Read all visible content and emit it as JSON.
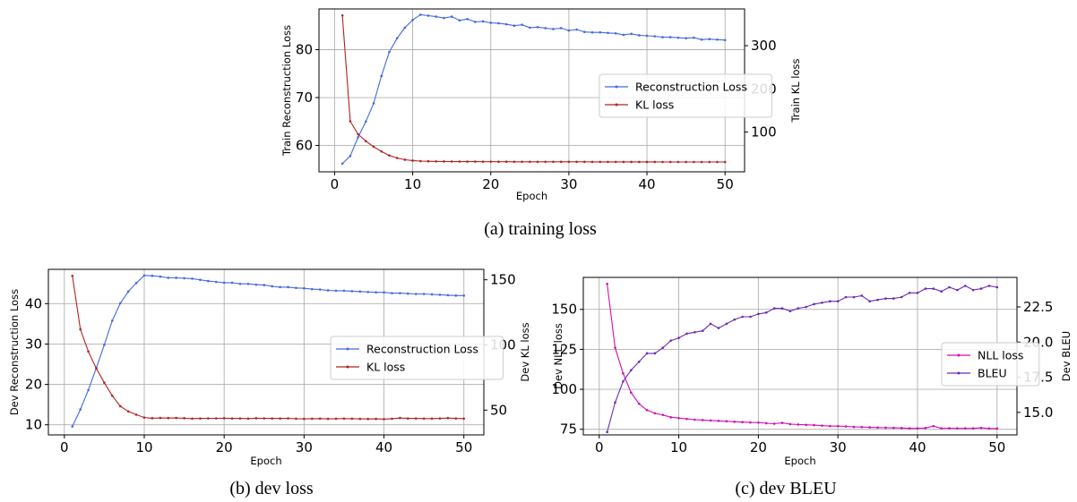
{
  "colors": {
    "recon": "#4169e1",
    "kl": "#b22222",
    "nll": "#d40cae",
    "bleu": "#6a2bb0",
    "grid": "#b0b0b0"
  },
  "chart_data": [
    {
      "id": "train",
      "type": "line",
      "caption": "(a) training loss",
      "xlabel": "Epoch",
      "ylabel_left": "Train Reconstruction Loss",
      "ylabel_right": "Train KL loss",
      "xlim": [
        -2.0,
        52.5
      ],
      "ylim_left": [
        54.5,
        88.5
      ],
      "ylim_right": [
        8,
        385
      ],
      "x_ticks": [
        0,
        10,
        20,
        30,
        40,
        50
      ],
      "y_ticks_left": [
        60,
        70,
        80
      ],
      "y_ticks_right": [
        100,
        200,
        300
      ],
      "grid": true,
      "legend_position": "right",
      "x": [
        1,
        2,
        3,
        4,
        5,
        6,
        7,
        8,
        9,
        10,
        11,
        12,
        13,
        14,
        15,
        16,
        17,
        18,
        19,
        20,
        21,
        22,
        23,
        24,
        25,
        26,
        27,
        28,
        29,
        30,
        31,
        32,
        33,
        34,
        35,
        36,
        37,
        38,
        39,
        40,
        41,
        42,
        43,
        44,
        45,
        46,
        47,
        48,
        49,
        50
      ],
      "series": [
        {
          "name": "Reconstruction Loss",
          "axis": "left",
          "color_key": "recon",
          "values": [
            56.2,
            57.8,
            61.7,
            65.0,
            68.8,
            74.5,
            79.5,
            82.4,
            84.6,
            86.2,
            87.3,
            87.1,
            86.9,
            86.6,
            86.9,
            86.1,
            86.4,
            85.8,
            85.9,
            85.6,
            85.5,
            85.3,
            85.0,
            85.2,
            84.6,
            84.7,
            84.5,
            84.3,
            84.5,
            84.0,
            84.2,
            83.7,
            83.6,
            83.6,
            83.5,
            83.4,
            83.1,
            83.3,
            83.0,
            82.9,
            82.8,
            82.6,
            82.6,
            82.5,
            82.4,
            82.5,
            82.1,
            82.2,
            82.1,
            82.0
          ]
        },
        {
          "name": "KL loss",
          "axis": "right",
          "color_key": "kl",
          "values": [
            370,
            125,
            95,
            79,
            66,
            55,
            46,
            40,
            36,
            34,
            32.8,
            32.4,
            32.1,
            31.9,
            31.8,
            31.7,
            31.6,
            31.6,
            31.5,
            31.5,
            31.4,
            31.4,
            31.3,
            31.3,
            31.3,
            31.2,
            31.2,
            31.2,
            31.1,
            31.1,
            31.1,
            31.1,
            31.0,
            31.0,
            31.0,
            31.0,
            30.9,
            30.9,
            30.9,
            30.9,
            30.9,
            30.8,
            30.8,
            30.8,
            30.8,
            30.8,
            30.7,
            30.7,
            30.7,
            30.7
          ]
        }
      ]
    },
    {
      "id": "dev",
      "type": "line",
      "caption": "(b) dev loss",
      "xlabel": "Epoch",
      "ylabel_left": "Dev Reconstruction Loss",
      "ylabel_right": "Dev KL loss",
      "xlim": [
        -2.0,
        52.5
      ],
      "ylim_left": [
        7.5,
        48.5
      ],
      "ylim_right": [
        31,
        158
      ],
      "x_ticks": [
        0,
        10,
        20,
        30,
        40,
        50
      ],
      "y_ticks_left": [
        10,
        20,
        30,
        40
      ],
      "y_ticks_right": [
        50,
        100,
        150
      ],
      "grid": true,
      "legend_position": "right",
      "x": [
        1,
        2,
        3,
        4,
        5,
        6,
        7,
        8,
        9,
        10,
        11,
        12,
        13,
        14,
        15,
        16,
        17,
        18,
        19,
        20,
        21,
        22,
        23,
        24,
        25,
        26,
        27,
        28,
        29,
        30,
        31,
        32,
        33,
        34,
        35,
        36,
        37,
        38,
        39,
        40,
        41,
        42,
        43,
        44,
        45,
        46,
        47,
        48,
        49,
        50
      ],
      "series": [
        {
          "name": "Reconstruction Loss",
          "axis": "left",
          "color_key": "recon",
          "values": [
            9.6,
            13.8,
            18.6,
            24.1,
            29.8,
            35.8,
            40.1,
            43.0,
            45.1,
            47.0,
            46.9,
            46.7,
            46.4,
            46.4,
            46.3,
            46.2,
            45.9,
            45.6,
            45.4,
            45.2,
            45.2,
            44.9,
            44.9,
            44.7,
            44.6,
            44.3,
            44.1,
            44.1,
            43.9,
            43.8,
            43.6,
            43.5,
            43.3,
            43.2,
            43.2,
            43.1,
            43.0,
            42.9,
            42.8,
            42.8,
            42.6,
            42.6,
            42.5,
            42.4,
            42.4,
            42.3,
            42.2,
            42.1,
            42.0,
            42.0
          ]
        },
        {
          "name": "KL loss",
          "axis": "right",
          "color_key": "kl",
          "values": [
            153,
            112,
            95,
            82,
            71,
            61,
            53,
            49,
            46.5,
            44.3,
            43.8,
            44.0,
            43.9,
            44.0,
            43.8,
            43.5,
            43.6,
            43.7,
            43.7,
            43.8,
            43.6,
            43.6,
            43.5,
            43.8,
            43.7,
            43.6,
            43.6,
            43.7,
            43.4,
            43.3,
            43.4,
            43.5,
            43.3,
            43.4,
            43.5,
            43.4,
            43.3,
            43.2,
            43.3,
            43.1,
            43.4,
            44.0,
            43.6,
            43.6,
            43.5,
            43.5,
            43.6,
            43.9,
            43.6,
            43.5
          ]
        }
      ]
    },
    {
      "id": "bleu",
      "type": "line",
      "caption": "(c) dev BLEU",
      "xlabel": "Epoch",
      "ylabel_left": "Dev NLL loss",
      "ylabel_right": "Dev BLEU",
      "xlim": [
        -2.0,
        52.5
      ],
      "ylim_left": [
        71.5,
        170
      ],
      "ylim_right": [
        13.4,
        24.6
      ],
      "x_ticks": [
        0,
        10,
        20,
        30,
        40,
        50
      ],
      "y_ticks_left": [
        75,
        100,
        125,
        150
      ],
      "y_ticks_right": [
        15.0,
        17.5,
        20.0,
        22.5
      ],
      "y_tick_decimals_right": 1,
      "grid": true,
      "legend_position": "right",
      "x": [
        1,
        2,
        3,
        4,
        5,
        6,
        7,
        8,
        9,
        10,
        11,
        12,
        13,
        14,
        15,
        16,
        17,
        18,
        19,
        20,
        21,
        22,
        23,
        24,
        25,
        26,
        27,
        28,
        29,
        30,
        31,
        32,
        33,
        34,
        35,
        36,
        37,
        38,
        39,
        40,
        41,
        42,
        43,
        44,
        45,
        46,
        47,
        48,
        49,
        50
      ],
      "series": [
        {
          "name": "NLL loss",
          "axis": "left",
          "color_key": "nll",
          "values": [
            166,
            126,
            110,
            98,
            91,
            87,
            85,
            84,
            82.5,
            82,
            81.5,
            81,
            80.8,
            80.5,
            80.3,
            80,
            79.7,
            79.5,
            79.3,
            79.2,
            78.8,
            78.5,
            79,
            78.2,
            78,
            77.8,
            77.6,
            77.3,
            77,
            77,
            76.8,
            76.5,
            76.4,
            76.2,
            76.1,
            76,
            75.9,
            75.8,
            75.6,
            75.6,
            75.8,
            77,
            75.6,
            75.7,
            75.6,
            75.6,
            75.6,
            75.9,
            75.5,
            75.5
          ]
        },
        {
          "name": "BLEU",
          "axis": "right",
          "color_key": "bleu",
          "values": [
            13.6,
            15.7,
            17.2,
            18.0,
            18.6,
            19.2,
            19.2,
            19.6,
            20.1,
            20.3,
            20.6,
            20.7,
            20.8,
            21.3,
            21.0,
            21.3,
            21.6,
            21.8,
            21.8,
            22.0,
            22.1,
            22.4,
            22.4,
            22.2,
            22.4,
            22.5,
            22.7,
            22.8,
            22.9,
            22.9,
            23.2,
            23.2,
            23.3,
            22.9,
            23.0,
            23.1,
            23.1,
            23.2,
            23.5,
            23.5,
            23.8,
            23.8,
            23.6,
            23.9,
            23.7,
            24.0,
            23.7,
            23.8,
            24.0,
            23.9
          ]
        }
      ]
    }
  ]
}
